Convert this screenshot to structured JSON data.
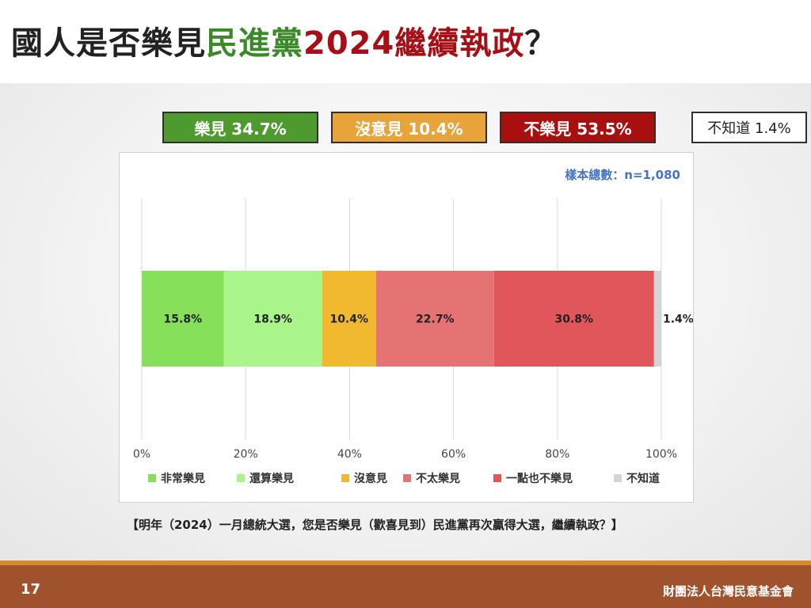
{
  "slide": {
    "title_parts": [
      {
        "text": "國人是否樂見",
        "color": "#222222"
      },
      {
        "text": "民進黨",
        "color": "#3a8a2a"
      },
      {
        "text": "2024繼續執政",
        "color": "#a50f15"
      },
      {
        "text": "？",
        "color": "#222222"
      }
    ],
    "summary": [
      {
        "label": "樂見 34.7%",
        "bg": "#4f9a2f",
        "fg": "#ffffff"
      },
      {
        "label": "沒意見 10.4%",
        "bg": "#e8a33a",
        "fg": "#ffffff"
      },
      {
        "label": "不樂見 53.5%",
        "bg": "#a80f0f",
        "fg": "#ffffff"
      },
      {
        "label": "不知道 1.4%",
        "bg": "#ffffff",
        "fg": "#222222"
      }
    ],
    "sample_note": "樣本總數：n=1,080",
    "question": "【明年（2024）一月總統大選，您是否樂見（歡喜見到）民進黨再次贏得大選，繼續執政？】",
    "page_number": "17",
    "organization": "財團法人台灣民意基金會"
  },
  "chart_data": {
    "type": "bar",
    "orientation": "horizontal-stacked",
    "xlim": [
      0,
      100
    ],
    "x_ticks": [
      "0%",
      "20%",
      "40%",
      "60%",
      "80%",
      "100%"
    ],
    "grid": true,
    "legend_position": "bottom",
    "series": [
      {
        "name": "非常樂見",
        "value": 15.8,
        "label": "15.8%",
        "color": "#86e05a"
      },
      {
        "name": "還算樂見",
        "value": 18.9,
        "label": "18.9%",
        "color": "#a9f58a"
      },
      {
        "name": "沒意見",
        "value": 10.4,
        "label": "10.4%",
        "color": "#f0b92e"
      },
      {
        "name": "不太樂見",
        "value": 22.7,
        "label": "22.7%",
        "color": "#e57373"
      },
      {
        "name": "一點也不樂見",
        "value": 30.8,
        "label": "30.8%",
        "color": "#e0565a"
      },
      {
        "name": "不知道",
        "value": 1.4,
        "label": "1.4%",
        "color": "#d4d4d4"
      }
    ]
  }
}
